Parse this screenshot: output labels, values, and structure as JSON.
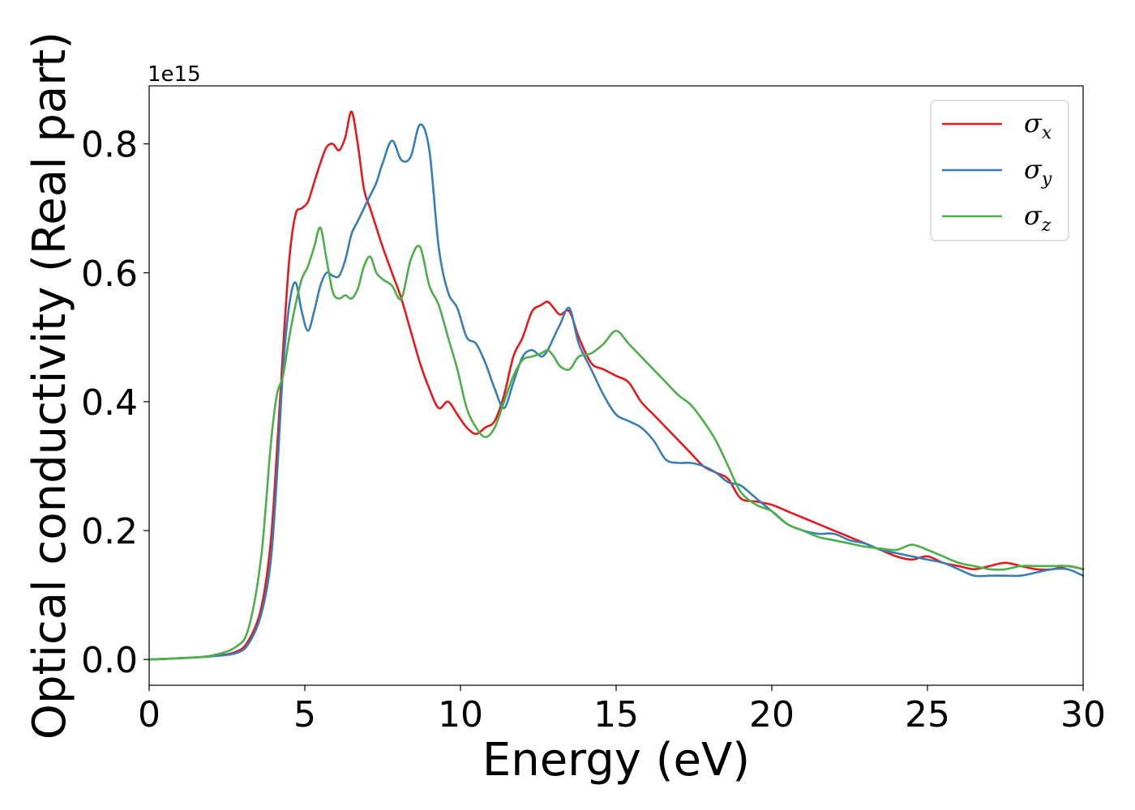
{
  "chart_data": {
    "type": "line",
    "xlabel": "Energy (eV)",
    "ylabel": "Optical conductivity (Real part)",
    "y_offset_label": "1e15",
    "xlim": [
      0,
      30
    ],
    "ylim": [
      -0.04,
      0.89
    ],
    "x_ticks": [
      0,
      5,
      10,
      15,
      20,
      25,
      30
    ],
    "x_tick_labels": [
      "0",
      "5",
      "10",
      "15",
      "20",
      "25",
      "30"
    ],
    "y_ticks": [
      0.0,
      0.2,
      0.4,
      0.6,
      0.8
    ],
    "y_tick_labels": [
      "0.0",
      "0.2",
      "0.4",
      "0.6",
      "0.8"
    ],
    "grid": false,
    "legend_position": "top-right",
    "series": [
      {
        "name": "σx",
        "legend_symbol": "σ",
        "legend_sub": "x",
        "color": "#e41a1c",
        "x": [
          0,
          1,
          2,
          2.8,
          3.2,
          3.6,
          3.9,
          4.1,
          4.3,
          4.5,
          4.7,
          4.9,
          5.1,
          5.3,
          5.5,
          5.7,
          5.9,
          6.1,
          6.3,
          6.5,
          6.7,
          6.9,
          7.1,
          7.3,
          7.5,
          7.8,
          8.1,
          8.4,
          8.7,
          9.0,
          9.3,
          9.6,
          9.9,
          10.2,
          10.5,
          10.8,
          11.1,
          11.4,
          11.7,
          12.0,
          12.3,
          12.6,
          12.8,
          13.0,
          13.2,
          13.5,
          13.8,
          14.2,
          14.6,
          15.0,
          15.4,
          15.8,
          16.2,
          16.6,
          17.0,
          17.4,
          17.8,
          18.2,
          18.6,
          19.0,
          19.5,
          20.0,
          20.5,
          21.0,
          21.5,
          22.0,
          22.5,
          23.0,
          23.5,
          24.0,
          24.5,
          25.0,
          25.5,
          26.0,
          26.5,
          27.0,
          27.5,
          28.0,
          28.5,
          29.0,
          29.5,
          30.0
        ],
        "y": [
          0.0,
          0.002,
          0.005,
          0.012,
          0.03,
          0.08,
          0.18,
          0.32,
          0.48,
          0.62,
          0.69,
          0.7,
          0.71,
          0.74,
          0.77,
          0.795,
          0.8,
          0.79,
          0.81,
          0.85,
          0.8,
          0.73,
          0.7,
          0.67,
          0.64,
          0.6,
          0.56,
          0.51,
          0.46,
          0.42,
          0.39,
          0.4,
          0.38,
          0.36,
          0.35,
          0.36,
          0.37,
          0.41,
          0.47,
          0.5,
          0.54,
          0.55,
          0.555,
          0.545,
          0.535,
          0.54,
          0.5,
          0.46,
          0.45,
          0.44,
          0.43,
          0.4,
          0.38,
          0.36,
          0.34,
          0.32,
          0.3,
          0.29,
          0.28,
          0.25,
          0.245,
          0.24,
          0.23,
          0.22,
          0.21,
          0.2,
          0.19,
          0.18,
          0.17,
          0.16,
          0.155,
          0.16,
          0.15,
          0.145,
          0.14,
          0.145,
          0.15,
          0.145,
          0.14,
          0.14,
          0.145,
          0.14
        ]
      },
      {
        "name": "σy",
        "legend_symbol": "σ",
        "legend_sub": "y",
        "color": "#377eb8",
        "x": [
          0,
          1,
          2,
          2.8,
          3.2,
          3.6,
          3.9,
          4.1,
          4.3,
          4.5,
          4.7,
          4.9,
          5.1,
          5.3,
          5.5,
          5.7,
          5.9,
          6.1,
          6.3,
          6.5,
          6.7,
          6.9,
          7.1,
          7.3,
          7.5,
          7.8,
          8.1,
          8.4,
          8.7,
          9.0,
          9.3,
          9.6,
          9.9,
          10.2,
          10.5,
          10.8,
          11.1,
          11.4,
          11.7,
          12.0,
          12.3,
          12.6,
          12.8,
          13.0,
          13.2,
          13.5,
          13.8,
          14.2,
          14.6,
          15.0,
          15.4,
          15.8,
          16.2,
          16.6,
          17.0,
          17.4,
          17.8,
          18.2,
          18.6,
          19.0,
          19.5,
          20.0,
          20.5,
          21.0,
          21.5,
          22.0,
          22.5,
          23.0,
          23.5,
          24.0,
          24.5,
          25.0,
          25.5,
          26.0,
          26.5,
          27.0,
          27.5,
          28.0,
          28.5,
          29.0,
          29.5,
          30.0
        ],
        "y": [
          0.0,
          0.002,
          0.005,
          0.01,
          0.025,
          0.07,
          0.15,
          0.28,
          0.45,
          0.55,
          0.585,
          0.54,
          0.51,
          0.54,
          0.58,
          0.6,
          0.595,
          0.595,
          0.62,
          0.66,
          0.68,
          0.7,
          0.72,
          0.74,
          0.77,
          0.805,
          0.775,
          0.78,
          0.83,
          0.79,
          0.64,
          0.57,
          0.545,
          0.5,
          0.49,
          0.46,
          0.42,
          0.39,
          0.43,
          0.47,
          0.48,
          0.47,
          0.48,
          0.5,
          0.52,
          0.545,
          0.49,
          0.45,
          0.41,
          0.38,
          0.37,
          0.36,
          0.34,
          0.31,
          0.305,
          0.305,
          0.3,
          0.29,
          0.275,
          0.27,
          0.25,
          0.23,
          0.21,
          0.2,
          0.195,
          0.195,
          0.185,
          0.18,
          0.17,
          0.165,
          0.16,
          0.155,
          0.15,
          0.14,
          0.13,
          0.13,
          0.13,
          0.13,
          0.135,
          0.14,
          0.14,
          0.13
        ]
      },
      {
        "name": "σz",
        "legend_symbol": "σ",
        "legend_sub": "z",
        "color": "#4daf4a",
        "x": [
          0,
          1,
          2,
          2.8,
          3.2,
          3.6,
          3.9,
          4.1,
          4.3,
          4.5,
          4.7,
          4.9,
          5.1,
          5.3,
          5.5,
          5.7,
          5.9,
          6.1,
          6.3,
          6.5,
          6.7,
          6.9,
          7.1,
          7.3,
          7.5,
          7.8,
          8.1,
          8.4,
          8.7,
          9.0,
          9.3,
          9.6,
          9.9,
          10.2,
          10.5,
          10.8,
          11.1,
          11.4,
          11.7,
          12.0,
          12.3,
          12.6,
          12.8,
          13.0,
          13.2,
          13.5,
          13.8,
          14.2,
          14.6,
          15.0,
          15.4,
          15.8,
          16.2,
          16.6,
          17.0,
          17.4,
          17.8,
          18.2,
          18.6,
          19.0,
          19.5,
          20.0,
          20.5,
          21.0,
          21.5,
          22.0,
          22.5,
          23.0,
          23.5,
          24.0,
          24.5,
          25.0,
          25.5,
          26.0,
          26.5,
          27.0,
          27.5,
          28.0,
          28.5,
          29.0,
          29.5,
          30.0
        ],
        "y": [
          0.0,
          0.002,
          0.006,
          0.02,
          0.05,
          0.16,
          0.33,
          0.41,
          0.44,
          0.5,
          0.55,
          0.59,
          0.61,
          0.64,
          0.67,
          0.62,
          0.57,
          0.56,
          0.565,
          0.56,
          0.575,
          0.61,
          0.625,
          0.6,
          0.59,
          0.58,
          0.56,
          0.62,
          0.64,
          0.58,
          0.55,
          0.5,
          0.45,
          0.39,
          0.36,
          0.345,
          0.36,
          0.4,
          0.44,
          0.465,
          0.47,
          0.475,
          0.48,
          0.47,
          0.455,
          0.45,
          0.47,
          0.475,
          0.49,
          0.51,
          0.49,
          0.47,
          0.45,
          0.43,
          0.41,
          0.395,
          0.37,
          0.34,
          0.3,
          0.26,
          0.24,
          0.23,
          0.21,
          0.2,
          0.19,
          0.185,
          0.18,
          0.175,
          0.172,
          0.17,
          0.178,
          0.17,
          0.16,
          0.15,
          0.145,
          0.14,
          0.14,
          0.145,
          0.145,
          0.145,
          0.145,
          0.14
        ]
      }
    ]
  }
}
